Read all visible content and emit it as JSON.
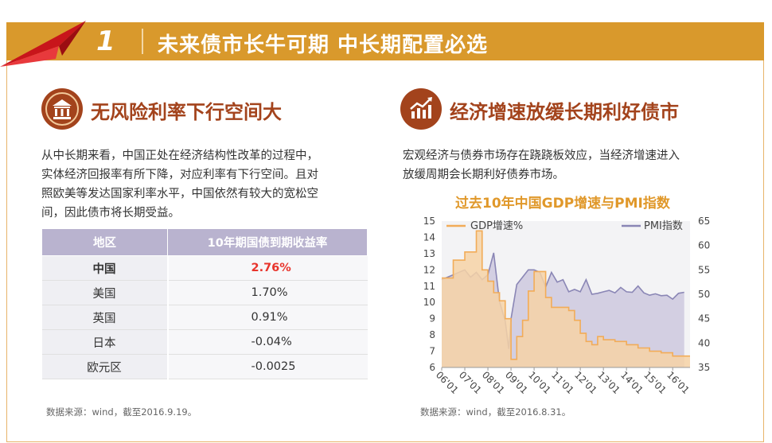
{
  "header": {
    "number": "1",
    "title": "未来债市长牛可期  中长期配置必选"
  },
  "left": {
    "title": "无风险利率下行空间大",
    "icon": "building-icon",
    "lines": [
      "从中长期来看，中国正处在经济结构性改革的过程中，",
      "实体经济回报率有所下降，对应利率有下行空间。且对",
      "照欧美等发达国家利率水平，中国依然有较大的宽松空",
      "间，因此债市将长期受益。"
    ],
    "table": {
      "headers": [
        "地区",
        "10年期国债到期收益率"
      ],
      "rows": [
        [
          "中国",
          "2.76%"
        ],
        [
          "美国",
          "1.70%"
        ],
        [
          "英国",
          "0.91%"
        ],
        [
          "日本",
          "-0.04%"
        ],
        [
          "欧元区",
          "-0.0025"
        ]
      ]
    },
    "source": "数据来源：wind，截至2016.9.19。"
  },
  "right": {
    "title": "经济增速放缓长期利好债市",
    "icon": "growth-chart-icon",
    "lines": [
      "宏观经济与债券市场存在跷跷板效应，当经济增速进入",
      "放缓周期会长期利好债券市场。"
    ],
    "source": "数据来源：wind，截至2016.8.31。"
  },
  "chart_data": {
    "type": "area",
    "title": "过去10年中国GDP增速与PMI指数",
    "legend_placement": "top",
    "x_ticks": [
      "06'01",
      "07'01",
      "08'01",
      "09'01",
      "10'01",
      "11'01",
      "12'01",
      "13'01",
      "14'01",
      "15'01",
      "16'01"
    ],
    "y_left": {
      "ticks": [
        6,
        7,
        8,
        9,
        10,
        11,
        12,
        13,
        14,
        15
      ],
      "range": [
        6,
        15
      ]
    },
    "y_right": {
      "ticks": [
        35,
        40,
        45,
        50,
        55,
        60,
        65
      ],
      "range": [
        35,
        65
      ]
    },
    "series": [
      {
        "name": "GDP增速%",
        "axis": "left",
        "color": "#f2ac58",
        "fill": "#f6d2a6",
        "x": [
          2006.0,
          2006.5,
          2007.0,
          2007.5,
          2007.75,
          2008.0,
          2008.25,
          2008.5,
          2008.75,
          2009.0,
          2009.25,
          2009.5,
          2009.75,
          2010.0,
          2010.5,
          2010.75,
          2011.0,
          2011.5,
          2011.75,
          2012.0,
          2012.25,
          2012.5,
          2012.75,
          2013.0,
          2013.5,
          2014.0,
          2014.25,
          2014.5,
          2015.0,
          2015.5,
          2016.0,
          2016.5
        ],
        "values": [
          11.5,
          12.6,
          13.1,
          14.4,
          12.0,
          11.3,
          10.6,
          10.1,
          9.0,
          6.5,
          7.9,
          8.9,
          10.7,
          11.9,
          10.3,
          9.7,
          9.7,
          9.5,
          8.9,
          8.1,
          7.6,
          7.4,
          7.9,
          7.7,
          7.6,
          7.4,
          7.4,
          7.2,
          7.0,
          6.9,
          6.7,
          6.7
        ]
      },
      {
        "name": "PMI指数",
        "axis": "right",
        "color": "#8a86b5",
        "fill": "#cfcbe0",
        "x": [
          2006.0,
          2006.5,
          2007.0,
          2007.25,
          2007.5,
          2007.75,
          2008.0,
          2008.25,
          2008.5,
          2008.75,
          2008.9,
          2009.0,
          2009.25,
          2009.5,
          2009.75,
          2010.0,
          2010.25,
          2010.5,
          2010.75,
          2011.0,
          2011.25,
          2011.5,
          2011.75,
          2012.0,
          2012.25,
          2012.5,
          2012.75,
          2013.0,
          2013.25,
          2013.5,
          2013.75,
          2014.0,
          2014.25,
          2014.5,
          2014.75,
          2015.0,
          2015.25,
          2015.5,
          2015.75,
          2016.0,
          2016.25,
          2016.5
        ],
        "values": [
          53.0,
          54.0,
          55.0,
          53.5,
          54.5,
          53.0,
          54.0,
          58.5,
          48.5,
          44.5,
          38.8,
          45.0,
          52.0,
          53.5,
          55.0,
          55.0,
          54.5,
          51.5,
          54.5,
          52.5,
          53.0,
          50.5,
          51.0,
          50.5,
          53.0,
          50.0,
          50.2,
          50.5,
          50.8,
          50.3,
          51.4,
          50.5,
          50.4,
          51.7,
          50.3,
          49.8,
          50.1,
          49.7,
          49.8,
          49.0,
          50.2,
          50.4
        ]
      }
    ]
  }
}
